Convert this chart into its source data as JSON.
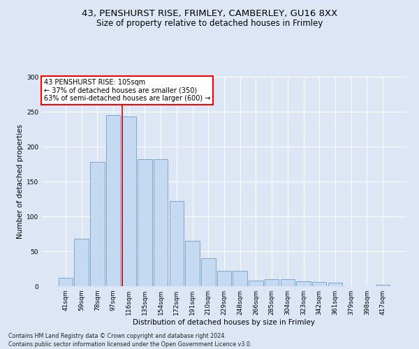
{
  "title1": "43, PENSHURST RISE, FRIMLEY, CAMBERLEY, GU16 8XX",
  "title2": "Size of property relative to detached houses in Frimley",
  "xlabel": "Distribution of detached houses by size in Frimley",
  "ylabel": "Number of detached properties",
  "footer1": "Contains HM Land Registry data © Crown copyright and database right 2024.",
  "footer2": "Contains public sector information licensed under the Open Government Licence v3.0.",
  "annotation_line1": "43 PENSHURST RISE: 105sqm",
  "annotation_line2": "← 37% of detached houses are smaller (350)",
  "annotation_line3": "63% of semi-detached houses are larger (600) →",
  "bar_labels": [
    "41sqm",
    "59sqm",
    "78sqm",
    "97sqm",
    "116sqm",
    "135sqm",
    "154sqm",
    "172sqm",
    "191sqm",
    "210sqm",
    "229sqm",
    "248sqm",
    "266sqm",
    "285sqm",
    "304sqm",
    "323sqm",
    "342sqm",
    "361sqm",
    "379sqm",
    "398sqm",
    "417sqm"
  ],
  "bar_values": [
    12,
    68,
    178,
    245,
    243,
    182,
    182,
    122,
    65,
    40,
    22,
    22,
    8,
    10,
    10,
    7,
    6,
    5,
    0,
    0,
    2
  ],
  "bar_color": "#c5d9f1",
  "bar_edge_color": "#5b8fc9",
  "vline_x": 3.58,
  "vline_color": "#cc0000",
  "background_color": "#dce6f5",
  "plot_bg_color": "#dce6f5",
  "ylim": [
    0,
    300
  ],
  "yticks": [
    0,
    50,
    100,
    150,
    200,
    250,
    300
  ],
  "title_fontsize": 9.5,
  "subtitle_fontsize": 8.5,
  "axis_label_fontsize": 7.5,
  "tick_fontsize": 6.5,
  "footer_fontsize": 5.8,
  "ann_fontsize": 7.0
}
